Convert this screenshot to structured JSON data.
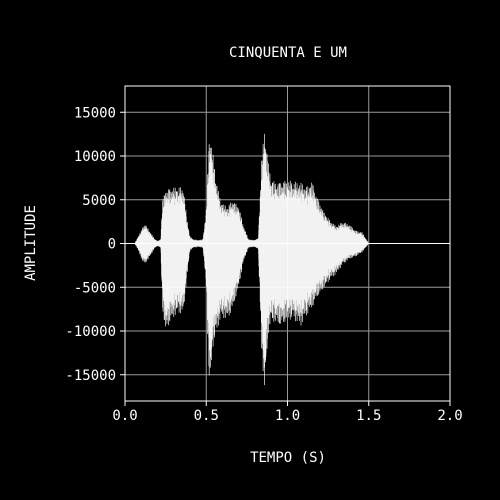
{
  "chart_data": {
    "type": "line",
    "title": "CINQUENTA E UM",
    "xlabel": "TEMPO (S)",
    "ylabel": "AMPLITUDE",
    "xlim": [
      0,
      2.0
    ],
    "ylim": [
      -18000,
      18000
    ],
    "xticks": [
      0.0,
      0.5,
      1.0,
      1.5,
      2.0
    ],
    "xtick_labels": [
      "0.0",
      "0.5",
      "1.0",
      "1.5",
      "2.0"
    ],
    "yticks": [
      -15000,
      -10000,
      -5000,
      0,
      5000,
      10000,
      15000
    ],
    "ytick_labels": [
      "-15000",
      "-10000",
      "-5000",
      "0",
      "5000",
      "10000",
      "15000"
    ],
    "grid": true,
    "colors": {
      "background": "#000000",
      "foreground": "#ffffff",
      "grid": "#9a9a9a",
      "waveform": "#ffffff"
    },
    "series": [
      {
        "type": "envelope",
        "t": [
          0.0,
          0.06,
          0.08,
          0.1,
          0.12,
          0.14,
          0.16,
          0.18,
          0.2,
          0.22,
          0.23,
          0.25,
          0.28,
          0.32,
          0.36,
          0.38,
          0.4,
          0.42,
          0.45,
          0.48,
          0.5,
          0.52,
          0.54,
          0.56,
          0.58,
          0.6,
          0.63,
          0.66,
          0.7,
          0.73,
          0.76,
          0.79,
          0.82,
          0.84,
          0.86,
          0.88,
          0.9,
          0.93,
          0.96,
          1.0,
          1.04,
          1.08,
          1.12,
          1.15,
          1.18,
          1.22,
          1.26,
          1.3,
          1.34,
          1.38,
          1.42,
          1.46,
          1.5,
          2.0
        ],
        "upper": [
          0,
          0,
          800,
          1500,
          2300,
          1800,
          1200,
          600,
          300,
          500,
          5000,
          6200,
          6400,
          6500,
          6400,
          3000,
          800,
          500,
          400,
          500,
          4000,
          13000,
          10500,
          7500,
          5500,
          4600,
          4200,
          5000,
          4300,
          2000,
          500,
          400,
          600,
          9500,
          13300,
          9500,
          7500,
          7000,
          7200,
          7300,
          7100,
          7000,
          6500,
          7200,
          5500,
          3800,
          2700,
          2000,
          2500,
          2200,
          1500,
          1300,
          0,
          0
        ],
        "lower": [
          0,
          0,
          -700,
          -1700,
          -2400,
          -1900,
          -1300,
          -600,
          -300,
          -500,
          -7500,
          -10200,
          -9000,
          -8000,
          -8000,
          -4000,
          -800,
          -500,
          -400,
          -500,
          -5000,
          -17300,
          -12000,
          -10500,
          -9000,
          -8500,
          -8700,
          -7700,
          -5000,
          -2000,
          -500,
          -400,
          -600,
          -12000,
          -17200,
          -10500,
          -9000,
          -9200,
          -9600,
          -8800,
          -8700,
          -9500,
          -8200,
          -7500,
          -6300,
          -5300,
          -4200,
          -3500,
          -2400,
          -1800,
          -1500,
          -1000,
          0,
          0
        ]
      }
    ]
  }
}
